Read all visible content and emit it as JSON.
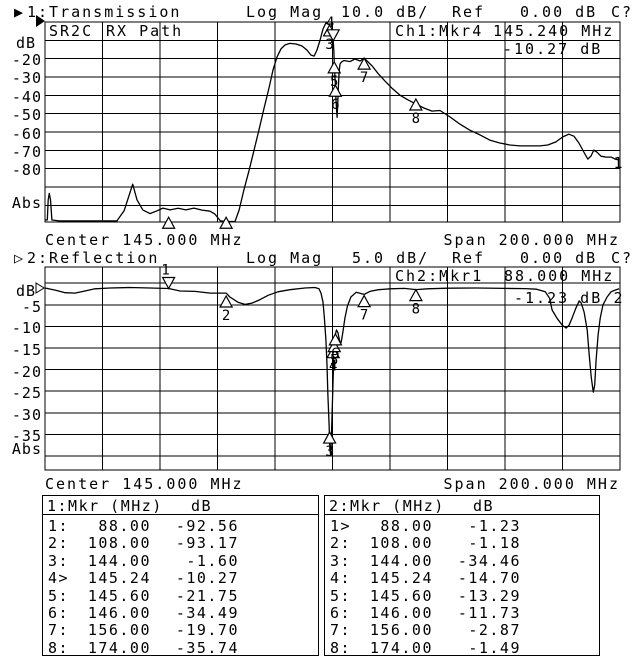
{
  "ch1": {
    "pointer": "▶",
    "title": "1:Transmission",
    "scale_mode": "Log Mag",
    "scale": "10.0 dB/",
    "ref_label": "Ref",
    "ref_value": "0.00 dB",
    "cal_status": "C?",
    "annot_left": "SR2C",
    "annot_right": "RX Path",
    "readout_label": "Ch1:Mkr4",
    "readout_freq": "145.240 MHz",
    "readout_value": "-10.27 dB",
    "y_unit": "dB",
    "y_ticks": [
      "-20",
      "-30",
      "-40",
      "-50",
      "-60",
      "-70",
      "-80"
    ],
    "y_floor": "Abs",
    "center": "Center 145.000 MHz",
    "span": "Span 200.000 MHz",
    "trace_id": "1"
  },
  "ch2": {
    "pointer": "▷",
    "title": "2:Reflection",
    "scale_mode": "Log Mag",
    "scale": "5.0 dB/",
    "ref_label": "Ref",
    "ref_value": "0.00 dB",
    "cal_status": "C?",
    "readout_label": "Ch2:Mkr1",
    "readout_freq": "88.000 MHz",
    "readout_value": "-1.23 dB",
    "y_unit": "dB",
    "y_ticks": [
      "-5",
      "-10",
      "-15",
      "-20",
      "-25",
      "-30",
      "-35"
    ],
    "y_floor": "Abs",
    "center": "Center 145.000 MHz",
    "span": "Span 200.000 MHz",
    "trace_id": "2"
  },
  "tables": {
    "t1": {
      "title": "1:Mkr (MHz)",
      "unit": "dB",
      "rows": [
        {
          "id": "1:",
          "f": "88.00",
          "v": "-92.56"
        },
        {
          "id": "2:",
          "f": "108.00",
          "v": "-93.17"
        },
        {
          "id": "3:",
          "f": "144.00",
          "v": "-1.60"
        },
        {
          "id": "4>",
          "f": "145.24",
          "v": "-10.27"
        },
        {
          "id": "5:",
          "f": "145.60",
          "v": "-21.75"
        },
        {
          "id": "6:",
          "f": "146.00",
          "v": "-34.49"
        },
        {
          "id": "7:",
          "f": "156.00",
          "v": "-19.70"
        },
        {
          "id": "8:",
          "f": "174.00",
          "v": "-35.74"
        }
      ]
    },
    "t2": {
      "title": "2:Mkr (MHz)",
      "unit": "dB",
      "rows": [
        {
          "id": "1>",
          "f": "88.00",
          "v": "-1.23"
        },
        {
          "id": "2:",
          "f": "108.00",
          "v": "-1.18"
        },
        {
          "id": "3:",
          "f": "144.00",
          "v": "-34.46"
        },
        {
          "id": "4:",
          "f": "145.24",
          "v": "-14.70"
        },
        {
          "id": "5:",
          "f": "145.60",
          "v": "-13.29"
        },
        {
          "id": "6:",
          "f": "146.00",
          "v": "-11.73"
        },
        {
          "id": "7:",
          "f": "156.00",
          "v": "-2.87"
        },
        {
          "id": "8:",
          "f": "174.00",
          "v": "-1.49"
        }
      ]
    }
  },
  "chart_data": [
    {
      "type": "line",
      "title": "1:Transmission",
      "xlabel": "MHz",
      "ylabel": "dB",
      "center_mhz": 145.0,
      "span_mhz": 200.0,
      "x_range": [
        45,
        245
      ],
      "scale_db_per_div": 10.0,
      "ref_db": 0.0,
      "trace_label": "1",
      "series": [
        {
          "name": "transmission-trace",
          "points": [
            [
              45,
              -108
            ],
            [
              45.8,
              -108
            ],
            [
              46.1,
              -97
            ],
            [
              46.5,
              -93.5
            ],
            [
              46.9,
              -97
            ],
            [
              47.4,
              -108
            ],
            [
              50,
              -108.5
            ],
            [
              60,
              -108.5
            ],
            [
              70,
              -108.5
            ],
            [
              72.5,
              -103
            ],
            [
              75.5,
              -88.5
            ],
            [
              77,
              -97
            ],
            [
              79,
              -102.5
            ],
            [
              81.5,
              -104.5
            ],
            [
              84,
              -103
            ],
            [
              86,
              -101.5
            ],
            [
              88.5,
              -102.5
            ],
            [
              91.3,
              -101.6
            ],
            [
              94,
              -102.5
            ],
            [
              96.8,
              -101.5
            ],
            [
              99.6,
              -102.6
            ],
            [
              102.4,
              -103.2
            ],
            [
              104.1,
              -104.8
            ],
            [
              106,
              -108.5
            ],
            [
              109,
              -108.8
            ],
            [
              111.1,
              -108.8
            ],
            [
              112.5,
              -102.6
            ],
            [
              114.2,
              -91.6
            ],
            [
              116,
              -80.9
            ],
            [
              117.7,
              -70
            ],
            [
              119.4,
              -59
            ],
            [
              121.2,
              -46.9
            ],
            [
              122.9,
              -36
            ],
            [
              124.3,
              -26.2
            ],
            [
              125.7,
              -19.1
            ],
            [
              127.1,
              -14.7
            ],
            [
              128.5,
              -12.5
            ],
            [
              130.2,
              -11.7
            ],
            [
              132.3,
              -12
            ],
            [
              134.4,
              -13.1
            ],
            [
              136.1,
              -15.3
            ],
            [
              137.5,
              -18
            ],
            [
              138.6,
              -18.6
            ],
            [
              139.6,
              -15.3
            ],
            [
              140.7,
              -9.8
            ],
            [
              141.7,
              -3.8
            ],
            [
              142.7,
              -0.5
            ],
            [
              143.4,
              -1.1
            ],
            [
              144,
              -1.6
            ],
            [
              144.6,
              -5.3
            ],
            [
              145.24,
              -10.27
            ],
            [
              145.45,
              -15.3
            ],
            [
              145.6,
              -21.75
            ],
            [
              145.8,
              -28.4
            ],
            [
              146,
              -34.49
            ],
            [
              146.2,
              -41.6
            ],
            [
              146.45,
              -49
            ],
            [
              146.6,
              -52
            ],
            [
              146.8,
              -45.3
            ],
            [
              147,
              -36.1
            ],
            [
              147.3,
              -27.4
            ],
            [
              147.6,
              -22.9
            ],
            [
              148.1,
              -21.9
            ],
            [
              149,
              -21
            ],
            [
              151.1,
              -21.6
            ],
            [
              152.8,
              -20.2
            ],
            [
              154.6,
              -21.3
            ],
            [
              156,
              -19.7
            ],
            [
              157.4,
              -21.8
            ],
            [
              158.8,
              -24
            ],
            [
              160.8,
              -28
            ],
            [
              163.3,
              -32.3
            ],
            [
              165.7,
              -36.1
            ],
            [
              168.5,
              -40
            ],
            [
              171.3,
              -42.5
            ],
            [
              174,
              -44.7
            ],
            [
              176.8,
              -46.9
            ],
            [
              179.6,
              -48.6
            ],
            [
              182.4,
              -48.3
            ],
            [
              185.9,
              -51.8
            ],
            [
              189.3,
              -55.7
            ],
            [
              192.8,
              -59
            ],
            [
              196.3,
              -61.6
            ],
            [
              199.7,
              -64.4
            ],
            [
              203.2,
              -66
            ],
            [
              206.7,
              -67.1
            ],
            [
              210.2,
              -67.6
            ],
            [
              213.6,
              -67.6
            ],
            [
              217.1,
              -67.6
            ],
            [
              219.9,
              -67.1
            ],
            [
              222.7,
              -65.4
            ],
            [
              225.1,
              -62.7
            ],
            [
              227.2,
              -61.2
            ],
            [
              229,
              -62.3
            ],
            [
              230.7,
              -66
            ],
            [
              232.4,
              -70.9
            ],
            [
              233.8,
              -74.8
            ],
            [
              234.9,
              -73.1
            ],
            [
              235.9,
              -69.9
            ],
            [
              237,
              -71
            ],
            [
              238.4,
              -73.2
            ],
            [
              240.1,
              -73.7
            ],
            [
              241.9,
              -73.7
            ],
            [
              243.3,
              -74.8
            ],
            [
              244.7,
              -75.3
            ]
          ]
        }
      ],
      "markers": [
        {
          "n": "1",
          "mhz": 88.0,
          "db": -92.56,
          "draw_db": -106.5,
          "active": false,
          "show_label": false
        },
        {
          "n": "2",
          "mhz": 108.0,
          "db": -93.17,
          "draw_db": -106.5,
          "active": false,
          "show_label": false
        },
        {
          "n": "3",
          "mhz": 144.0,
          "db": -1.6,
          "draw_db": -1.6,
          "active": false,
          "show_label": true
        },
        {
          "n": "4",
          "mhz": 145.24,
          "db": -10.27,
          "draw_db": -10.27,
          "active": true,
          "show_label": true
        },
        {
          "n": "5",
          "mhz": 145.6,
          "db": -21.75,
          "draw_db": -21.75,
          "active": false,
          "show_label": true
        },
        {
          "n": "6",
          "mhz": 146.0,
          "db": -34.49,
          "draw_db": -34.49,
          "active": false,
          "show_label": true
        },
        {
          "n": "7",
          "mhz": 156.0,
          "db": -19.7,
          "draw_db": -19.7,
          "active": false,
          "show_label": true
        },
        {
          "n": "8",
          "mhz": 174.0,
          "db": -35.74,
          "draw_db": -42.0,
          "active": false,
          "show_label": true
        }
      ]
    },
    {
      "type": "line",
      "title": "2:Reflection",
      "xlabel": "MHz",
      "ylabel": "dB",
      "center_mhz": 145.0,
      "span_mhz": 200.0,
      "x_range": [
        45,
        245
      ],
      "scale_db_per_div": 5.0,
      "ref_db": 0.0,
      "trace_label": "2",
      "series": [
        {
          "name": "reflection-trace",
          "points": [
            [
              45,
              -1.1
            ],
            [
              48.5,
              -1.6
            ],
            [
              52,
              -2.2
            ],
            [
              55.4,
              -2.3
            ],
            [
              58.9,
              -1.8
            ],
            [
              62.4,
              -1.3
            ],
            [
              67.6,
              -1.1
            ],
            [
              74.6,
              -1.0
            ],
            [
              81.5,
              -1.1
            ],
            [
              88,
              -1.23
            ],
            [
              92,
              -1.8
            ],
            [
              97.2,
              -1.9
            ],
            [
              102.4,
              -2.3
            ],
            [
              108,
              -2.3
            ],
            [
              109.3,
              -3.2
            ],
            [
              112.1,
              -4.4
            ],
            [
              114.6,
              -4.9
            ],
            [
              117,
              -4.6
            ],
            [
              119.8,
              -3.8
            ],
            [
              122.6,
              -2.8
            ],
            [
              126,
              -2.0
            ],
            [
              130.2,
              -1.5
            ],
            [
              135.4,
              -1.1
            ],
            [
              138.9,
              -1.0
            ],
            [
              140.3,
              -1.3
            ],
            [
              141,
              -2.3
            ],
            [
              141.7,
              -4.4
            ],
            [
              142.2,
              -8.1
            ],
            [
              142.7,
              -13.1
            ],
            [
              143.1,
              -18.9
            ],
            [
              143.4,
              -25.9
            ],
            [
              143.8,
              -32.8
            ],
            [
              144.1,
              -38.6
            ],
            [
              144.4,
              -39.8
            ],
            [
              144.7,
              -34
            ],
            [
              145,
              -27
            ],
            [
              145.3,
              -20.1
            ],
            [
              145.6,
              -13.4
            ],
            [
              146,
              -11.8
            ],
            [
              146.4,
              -10.8
            ],
            [
              146.9,
              -11.5
            ],
            [
              147.4,
              -13.1
            ],
            [
              147.8,
              -14.1
            ],
            [
              148.1,
              -13.4
            ],
            [
              148.6,
              -11.3
            ],
            [
              149.3,
              -8.1
            ],
            [
              150.2,
              -5.3
            ],
            [
              151.4,
              -3.2
            ],
            [
              153.2,
              -2.1
            ],
            [
              156,
              -2.6
            ],
            [
              158,
              -1.9
            ],
            [
              161,
              -1.5
            ],
            [
              165,
              -1.3
            ],
            [
              170,
              -1.2
            ],
            [
              174,
              -1.49
            ],
            [
              178,
              -1.3
            ],
            [
              185,
              -1.15
            ],
            [
              195,
              -1.1
            ],
            [
              205,
              -1.2
            ],
            [
              212,
              -1.25
            ],
            [
              216,
              -1.4
            ],
            [
              219,
              -2.0
            ],
            [
              220.5,
              -3.5
            ],
            [
              221.4,
              -6.2
            ],
            [
              223.1,
              -8.1
            ],
            [
              224.9,
              -9.7
            ],
            [
              226.3,
              -10.4
            ],
            [
              227.3,
              -9.7
            ],
            [
              228.3,
              -8.1
            ],
            [
              229.7,
              -5.7
            ],
            [
              230.8,
              -4.1
            ],
            [
              231.5,
              -4.6
            ],
            [
              232.5,
              -6.7
            ],
            [
              233.6,
              -10.8
            ],
            [
              234.3,
              -16.6
            ],
            [
              235,
              -21.9
            ],
            [
              235.7,
              -25.2
            ],
            [
              236.2,
              -23.6
            ],
            [
              236.7,
              -17.8
            ],
            [
              237.4,
              -12
            ],
            [
              238.1,
              -8.1
            ],
            [
              239.1,
              -5
            ],
            [
              240.5,
              -3.2
            ],
            [
              241.9,
              -2
            ],
            [
              243.3,
              -1.6
            ],
            [
              244.7,
              -1.3
            ]
          ]
        }
      ],
      "markers": [
        {
          "n": "1",
          "mhz": 88.0,
          "db": -1.23,
          "draw_db": -1.23,
          "active": true,
          "show_label": true
        },
        {
          "n": "2",
          "mhz": 108.0,
          "db": -1.18,
          "draw_db": -2.96,
          "active": false,
          "show_label": true
        },
        {
          "n": "3",
          "mhz": 144.0,
          "db": -34.46,
          "draw_db": -34.46,
          "active": false,
          "show_label": true
        },
        {
          "n": "4",
          "mhz": 145.24,
          "db": -14.7,
          "draw_db": -14.7,
          "active": false,
          "show_label": true
        },
        {
          "n": "5",
          "mhz": 145.6,
          "db": -13.29,
          "draw_db": -13.29,
          "active": false,
          "show_label": true
        },
        {
          "n": "6",
          "mhz": 146.0,
          "db": -11.73,
          "draw_db": -11.73,
          "active": false,
          "show_label": true
        },
        {
          "n": "7",
          "mhz": 156.0,
          "db": -2.87,
          "draw_db": -2.87,
          "active": false,
          "show_label": true
        },
        {
          "n": "8",
          "mhz": 174.0,
          "db": -1.49,
          "draw_db": -1.49,
          "active": false,
          "show_label": true
        }
      ]
    }
  ]
}
